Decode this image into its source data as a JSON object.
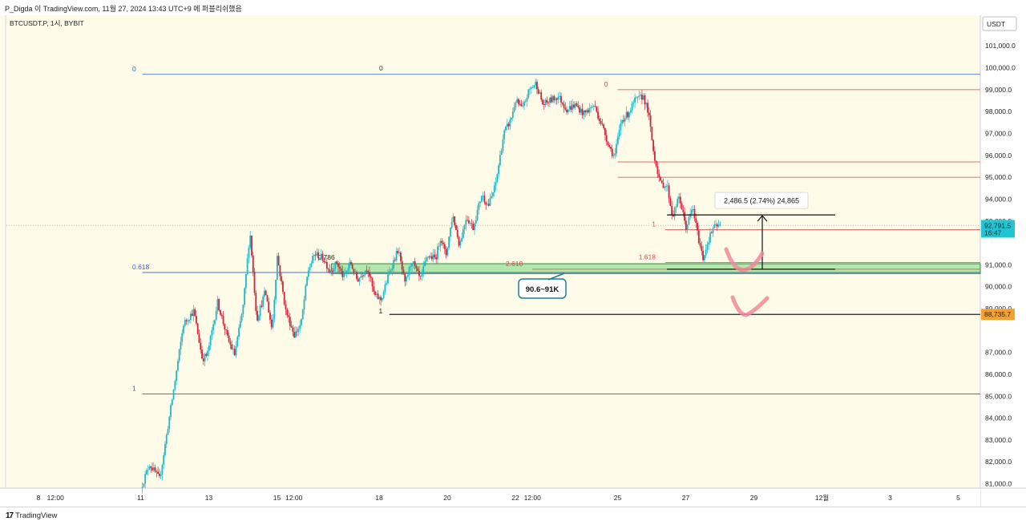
{
  "header": {
    "publisher": "P_Digda 이 TradingView.com, 11월 27, 2024 13:43 UTC+9 에 퍼블리쉬했음"
  },
  "symbol_label": "BTCUSDT.P, 1시, BYBIT",
  "footer": {
    "brand_mark": "17",
    "brand_name": "TradingView"
  },
  "chart_data": {
    "type": "candlestick",
    "symbol": "BTCUSDT.P",
    "timeframe": "1시",
    "exchange": "BYBIT",
    "currency_label": "USDT",
    "ylim": [
      80800,
      102400
    ],
    "y_ticks": [
      {
        "value": 101000,
        "label": "101,000.0"
      },
      {
        "value": 100000,
        "label": "100,000.0"
      },
      {
        "value": 99000,
        "label": "99,000.0"
      },
      {
        "value": 98000,
        "label": "98,000.0"
      },
      {
        "value": 97000,
        "label": "97,000.0"
      },
      {
        "value": 96000,
        "label": "96,000.0"
      },
      {
        "value": 95000,
        "label": "95,000.0"
      },
      {
        "value": 94000,
        "label": "94,000.0"
      },
      {
        "value": 93000,
        "label": "93,000.0"
      },
      {
        "value": 91000,
        "label": "91,000.0"
      },
      {
        "value": 90000,
        "label": "90,000.0"
      },
      {
        "value": 89000,
        "label": "89,000.0"
      },
      {
        "value": 87000,
        "label": "87,000.0"
      },
      {
        "value": 86000,
        "label": "86,000.0"
      },
      {
        "value": 85000,
        "label": "85,000.0"
      },
      {
        "value": 84000,
        "label": "84,000.0"
      },
      {
        "value": 83000,
        "label": "83,000.0"
      },
      {
        "value": 82000,
        "label": "82,000.0"
      },
      {
        "value": 81000,
        "label": "81,000.0"
      }
    ],
    "x_ticks": [
      {
        "day": 8,
        "label": "8"
      },
      {
        "day": 8.5,
        "label": "12:00"
      },
      {
        "day": 11,
        "label": "11"
      },
      {
        "day": 13,
        "label": "13"
      },
      {
        "day": 15,
        "label": "15"
      },
      {
        "day": 15.5,
        "label": "12:00"
      },
      {
        "day": 18,
        "label": "18"
      },
      {
        "day": 20,
        "label": "20"
      },
      {
        "day": 22,
        "label": "22"
      },
      {
        "day": 22.5,
        "label": "12:00"
      },
      {
        "day": 25,
        "label": "25"
      },
      {
        "day": 27,
        "label": "27"
      },
      {
        "day": 29,
        "label": "29"
      },
      {
        "day": 31,
        "label": "12월"
      },
      {
        "day": 33,
        "label": "3"
      },
      {
        "day": 35,
        "label": "5"
      }
    ],
    "current_price": {
      "value": 92791.5,
      "label": "92,791.5",
      "countdown": "16:47"
    },
    "marked_level": {
      "value": 88735.7,
      "label": "88,735.7"
    },
    "price_path": [
      [
        11.05,
        80800
      ],
      [
        11.3,
        81900
      ],
      [
        11.6,
        81200
      ],
      [
        12.0,
        85200
      ],
      [
        12.3,
        88300
      ],
      [
        12.6,
        88900
      ],
      [
        12.85,
        86700
      ],
      [
        13.0,
        86900
      ],
      [
        13.3,
        89300
      ],
      [
        13.6,
        87600
      ],
      [
        13.8,
        86900
      ],
      [
        14.05,
        89100
      ],
      [
        14.25,
        92500
      ],
      [
        14.45,
        88500
      ],
      [
        14.7,
        89800
      ],
      [
        14.9,
        88000
      ],
      [
        15.05,
        91400
      ],
      [
        15.3,
        88900
      ],
      [
        15.55,
        87800
      ],
      [
        15.75,
        88300
      ],
      [
        15.95,
        90700
      ],
      [
        16.15,
        91500
      ],
      [
        16.4,
        91300
      ],
      [
        16.6,
        90700
      ],
      [
        16.8,
        91100
      ],
      [
        17.0,
        90400
      ],
      [
        17.2,
        91100
      ],
      [
        17.4,
        90300
      ],
      [
        17.7,
        90900
      ],
      [
        17.9,
        89600
      ],
      [
        18.1,
        89400
      ],
      [
        18.35,
        90700
      ],
      [
        18.6,
        91700
      ],
      [
        18.8,
        90100
      ],
      [
        19.0,
        91200
      ],
      [
        19.25,
        90300
      ],
      [
        19.45,
        91400
      ],
      [
        19.7,
        91300
      ],
      [
        19.85,
        92300
      ],
      [
        20.0,
        91400
      ],
      [
        20.2,
        93300
      ],
      [
        20.4,
        91900
      ],
      [
        20.6,
        93200
      ],
      [
        20.8,
        92700
      ],
      [
        21.05,
        94200
      ],
      [
        21.25,
        93700
      ],
      [
        21.45,
        94600
      ],
      [
        21.7,
        97000
      ],
      [
        21.9,
        97600
      ],
      [
        22.05,
        98500
      ],
      [
        22.25,
        98100
      ],
      [
        22.45,
        99000
      ],
      [
        22.65,
        99300
      ],
      [
        22.85,
        98300
      ],
      [
        23.05,
        98500
      ],
      [
        23.3,
        98700
      ],
      [
        23.55,
        98100
      ],
      [
        23.8,
        98300
      ],
      [
        24.05,
        97900
      ],
      [
        24.35,
        98300
      ],
      [
        24.6,
        97300
      ],
      [
        24.8,
        96400
      ],
      [
        24.95,
        95900
      ],
      [
        25.15,
        97600
      ],
      [
        25.35,
        97900
      ],
      [
        25.55,
        98500
      ],
      [
        25.8,
        98700
      ],
      [
        25.95,
        97900
      ],
      [
        26.1,
        96100
      ],
      [
        26.3,
        94700
      ],
      [
        26.5,
        94600
      ],
      [
        26.65,
        93200
      ],
      [
        26.85,
        94100
      ],
      [
        27.05,
        92700
      ],
      [
        27.25,
        93600
      ],
      [
        27.4,
        92300
      ],
      [
        27.55,
        91300
      ],
      [
        27.7,
        92100
      ],
      [
        27.85,
        92700
      ],
      [
        28.05,
        92800
      ]
    ],
    "fib_blue": {
      "anchor_day": 11.05,
      "levels": [
        {
          "ratio": "0",
          "value": 99700
        },
        {
          "ratio": "0.618",
          "value": 90650
        },
        {
          "ratio": "1",
          "value": 85100
        }
      ]
    },
    "fib_red": {
      "levels": [
        {
          "ratio": "0",
          "value": 99000,
          "day": 25
        },
        {
          "ratio": "1",
          "value": 92600,
          "day": 26.4
        },
        {
          "ratio": "1.618",
          "value": 91100,
          "day": 26.4
        },
        {
          "ratio": "2.618",
          "value": 90800,
          "day": 22.5
        }
      ],
      "extra_levels": [
        95700,
        95000
      ]
    },
    "fib_black": [
      {
        "ratio": "0.786",
        "value": 91350,
        "day": 16.7
      },
      {
        "ratio": "1",
        "value": 88900,
        "day": 18.1
      }
    ],
    "support_zone": {
      "from": 90600,
      "to": 91050,
      "label": "90.6~91K"
    },
    "measure": {
      "from": 90800,
      "to": 93280,
      "label": "2,486.5 (2.74%) 24,865"
    },
    "dotted_current_line": 92800
  }
}
